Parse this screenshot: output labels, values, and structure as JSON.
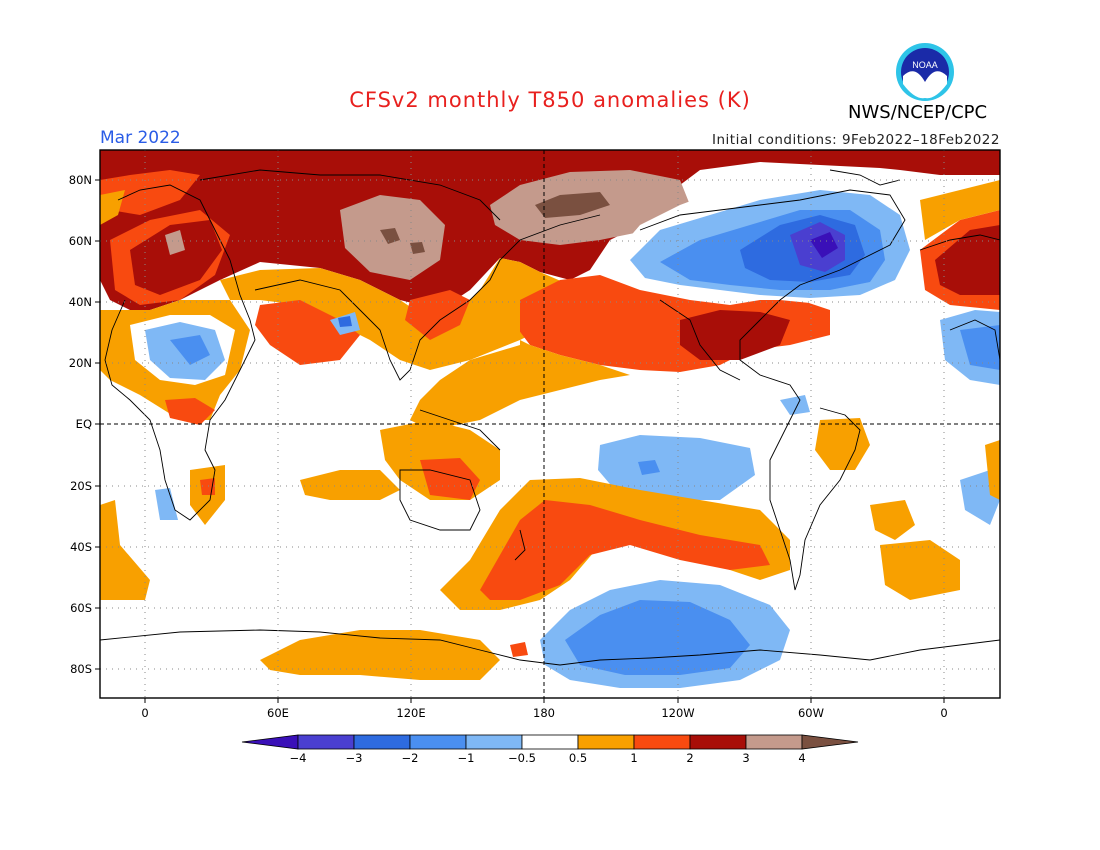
{
  "title": "CFSv2 monthly T850 anomalies (K)",
  "agency": "NWS/NCEP/CPC",
  "logo_text": "NOAA",
  "valid_month": "Mar 2022",
  "initial_conditions": "Initial conditions: 9Feb2022–18Feb2022",
  "lat_labels": [
    "80N",
    "60N",
    "40N",
    "20N",
    "EQ",
    "20S",
    "40S",
    "60S",
    "80S"
  ],
  "lon_labels": [
    "0",
    "60E",
    "120E",
    "180",
    "120W",
    "60W",
    "0"
  ],
  "colorbar": {
    "labels": [
      "−4",
      "−3",
      "−2",
      "−1",
      "−0.5",
      "0.5",
      "1",
      "2",
      "3",
      "4"
    ],
    "colors": [
      "#3a10b8",
      "#4a3fd0",
      "#2e6be0",
      "#4a8ff0",
      "#7fb8f5",
      "#ffffff",
      "#f8a000",
      "#f84a10",
      "#a80e08",
      "#c49a8c",
      "#7a5040"
    ]
  }
}
